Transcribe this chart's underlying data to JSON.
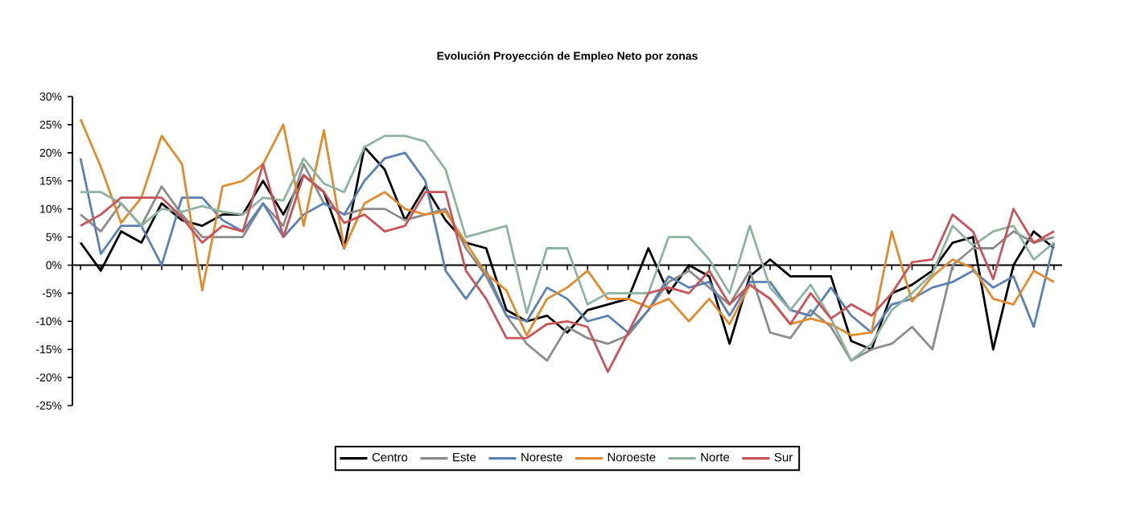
{
  "chart_data": {
    "type": "line",
    "title": "Evolución Proyección de Empleo Neto por zonas",
    "categories": [
      null,
      null,
      null,
      null,
      null,
      null,
      null,
      null,
      null,
      null,
      null,
      null,
      null,
      null,
      null,
      null,
      null,
      null,
      null,
      null,
      null,
      null,
      null,
      null,
      null,
      null,
      null,
      null,
      null,
      null,
      null,
      null,
      null,
      null,
      null,
      null,
      null,
      null,
      null,
      null,
      null,
      null,
      null,
      null,
      null,
      null,
      null,
      null,
      null
    ],
    "series": [
      {
        "name": "Centro",
        "color": "#000000",
        "values": [
          4,
          -1,
          6,
          4,
          11,
          8,
          7,
          9,
          9,
          15,
          9,
          16,
          13,
          3,
          21,
          17,
          8,
          14,
          8,
          4,
          3,
          -8,
          -10,
          -9,
          -12,
          -8,
          -7,
          -6,
          3,
          -5,
          0,
          -2,
          -14,
          -2,
          1,
          -2,
          -2,
          -2,
          -13.5,
          -15,
          -5,
          -3.5,
          -1,
          4,
          5,
          -15,
          0,
          6,
          3
        ]
      },
      {
        "name": "Este",
        "color": "#8c8c8c",
        "values": [
          9,
          6,
          11,
          7,
          14,
          9,
          5,
          5,
          5,
          11,
          7,
          18,
          11,
          9,
          10,
          10,
          8,
          9,
          10,
          3,
          -2,
          -9,
          -14,
          -17,
          -11,
          -13,
          -14,
          -12.5,
          -8,
          -3,
          -1,
          -4,
          -7,
          -1,
          -12,
          -13,
          -8,
          -11,
          -17,
          -15,
          -14,
          -11,
          -15,
          0,
          3,
          3,
          6,
          4,
          5
        ]
      },
      {
        "name": "Noreste",
        "color": "#5b80b2",
        "values": [
          19,
          2,
          7,
          7,
          0,
          12,
          12,
          8,
          6,
          11,
          5,
          9,
          11,
          9,
          15,
          19,
          20,
          15,
          -1,
          -6,
          -1,
          -9,
          -10,
          -4,
          -6,
          -10,
          -9,
          -12,
          -8,
          -2,
          -4,
          -3,
          -9,
          -3,
          -3,
          -8,
          -9,
          -4,
          -9,
          -12,
          -7,
          -6,
          -4,
          -3,
          -1,
          -4,
          -2,
          -11,
          4
        ]
      },
      {
        "name": "Noroeste",
        "color": "#e08c2e",
        "values": [
          26,
          17.5,
          7.5,
          12,
          23,
          18,
          -4.5,
          14,
          15,
          18,
          25,
          7,
          24,
          3,
          11,
          13,
          10,
          9,
          9.5,
          4,
          -1.5,
          -4.5,
          -12.5,
          -6,
          -4,
          -1,
          -6,
          -6,
          -7.5,
          -6,
          -10,
          -6,
          -10.5,
          -3.5,
          -6,
          -10.5,
          -9.5,
          -10.5,
          -12.5,
          -12,
          6,
          -6.5,
          -2,
          1,
          -0.5,
          -6,
          -7,
          -1,
          -3
        ]
      },
      {
        "name": "Norte",
        "color": "#8fb3a3",
        "values": [
          13,
          13,
          11,
          7,
          10,
          9.5,
          10.5,
          9.5,
          9,
          12,
          11.5,
          19,
          14.5,
          13,
          21,
          23,
          23,
          22,
          17,
          5,
          6,
          7,
          -8.5,
          3,
          3,
          -7,
          -5,
          -5,
          -5,
          5,
          5,
          1,
          -5,
          7,
          -4,
          -8,
          -3.5,
          -9.5,
          -17,
          -14,
          -8,
          -5,
          -1.5,
          7,
          3.5,
          6,
          7,
          1,
          4
        ]
      },
      {
        "name": "Sur",
        "color": "#c9545a",
        "values": [
          7,
          9,
          12,
          12,
          12,
          8.5,
          4,
          7,
          6,
          18,
          5,
          16,
          13,
          7.5,
          9,
          6,
          7,
          13,
          13,
          -1,
          -6,
          -13,
          -13,
          -10.5,
          -10,
          -11,
          -19,
          -12,
          -5,
          -4,
          -5,
          -1,
          -7,
          -3.5,
          -6,
          -10.5,
          -5,
          -9.5,
          -7,
          -9,
          -5,
          0.5,
          1,
          9,
          6,
          -2.5,
          10,
          4,
          6
        ]
      }
    ],
    "ylim": [
      -25,
      30
    ],
    "yticks": [
      {
        "value": -25,
        "label": "-25%"
      },
      {
        "value": -20,
        "label": "-20%"
      },
      {
        "value": -15,
        "label": "-15%"
      },
      {
        "value": -10,
        "label": "-10%"
      },
      {
        "value": -5,
        "label": "-5%"
      },
      {
        "value": 0,
        "label": "0%"
      },
      {
        "value": 5,
        "label": "5%"
      },
      {
        "value": 10,
        "label": "10%"
      },
      {
        "value": 15,
        "label": "15%"
      },
      {
        "value": 20,
        "label": "20%"
      },
      {
        "value": 25,
        "label": "25%"
      },
      {
        "value": 30,
        "label": "30%"
      }
    ],
    "tick_labels": "y",
    "legend": "bottom",
    "line_style": "solid"
  }
}
